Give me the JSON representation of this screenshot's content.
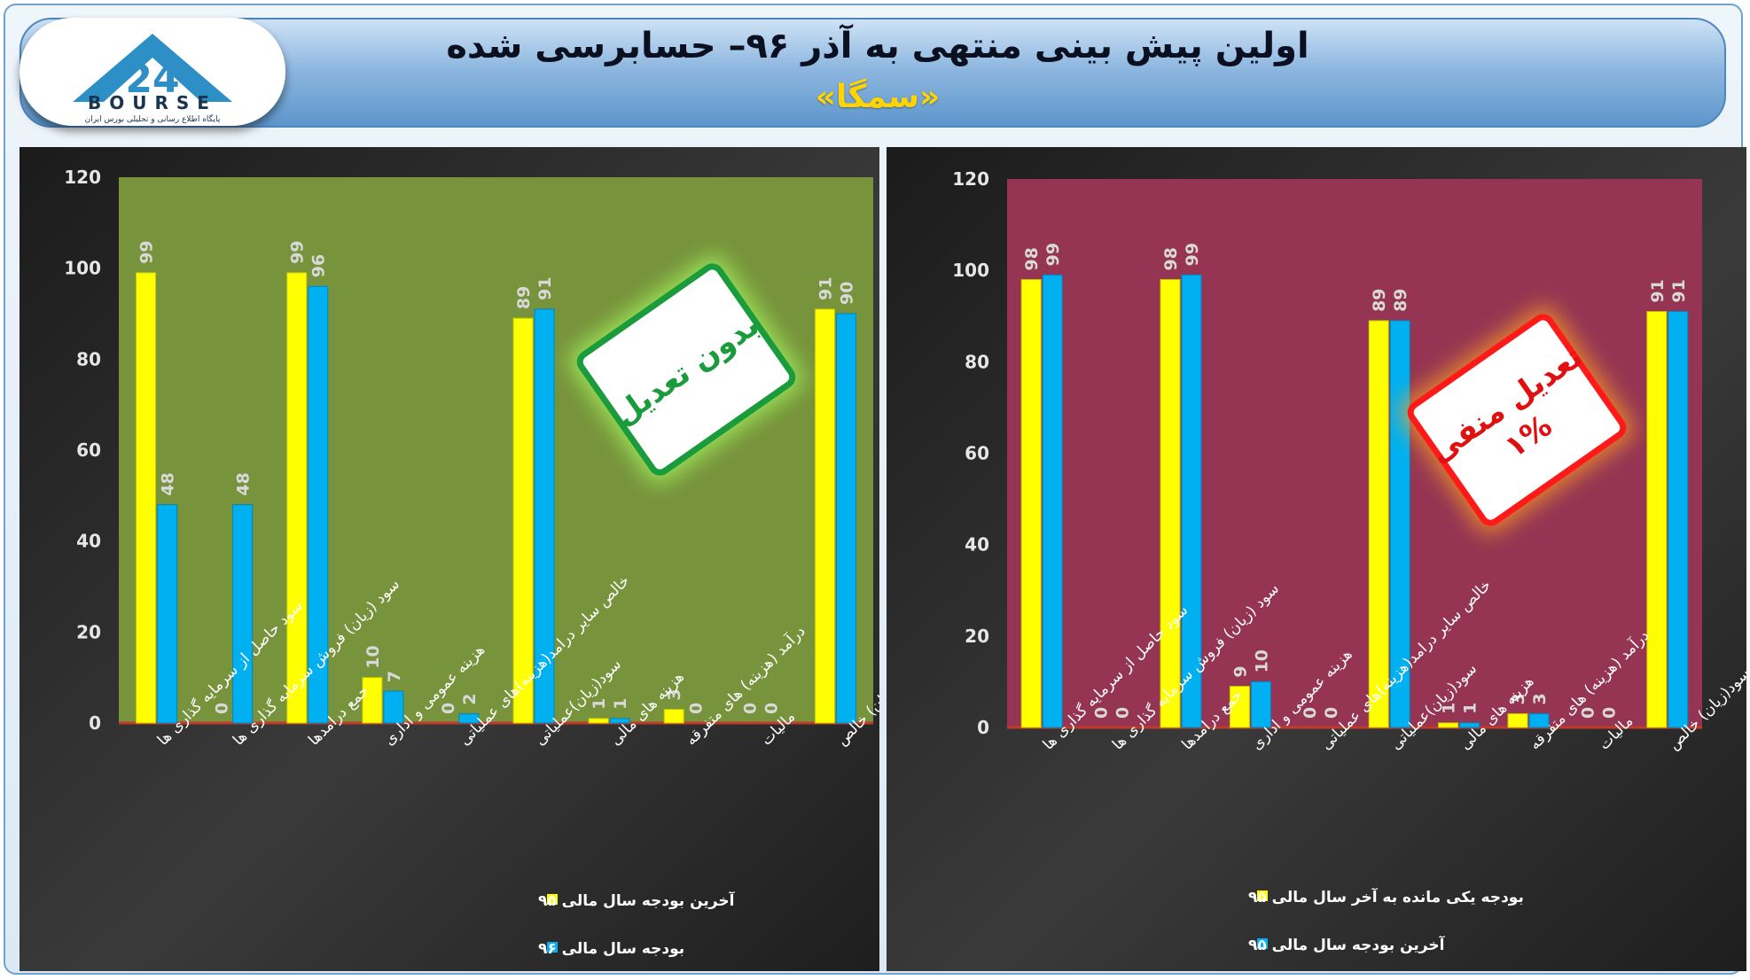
{
  "header": {
    "title": "اولین پیش بینی منتهی به آذر ۹۶– حسابرسی شده",
    "subtitle": "«سمگا»"
  },
  "logo": {
    "brand": "BOURSE",
    "number": "24",
    "tagline": "پایگاه اطلاع رسانی و تحلیلی بورس ایران"
  },
  "colors": {
    "yellow": "#ffff00",
    "blue": "#00b0f0",
    "left_plot_bg": "#77933c",
    "right_plot_bg": "#953553",
    "chart_bg": "#262626"
  },
  "chart_data": [
    {
      "type": "bar",
      "categories": [
        "سود حاصل از سرمایه گذاری ها",
        "سود (زیان) فروش سرمایه گذاری ها",
        "جمع درامدها",
        "هزینه عمومی و اداری",
        "خالص سایر درامد(هزینه)های عملیاتی",
        "سود(زیان)عملیاتی",
        "هزینه های مالی",
        "درآمد (هزینه) های متفرقه",
        "مالیات",
        "سود(زیان) خالص"
      ],
      "series": [
        {
          "name": "آخرین بودجه سال مالی ۹۵",
          "values": [
            99,
            0,
            99,
            10,
            0,
            89,
            1,
            3,
            0,
            91
          ]
        },
        {
          "name": "بودجه سال مالی ۹۶",
          "values": [
            48,
            48,
            96,
            7,
            2,
            91,
            1,
            0,
            0,
            90
          ]
        }
      ],
      "ylim": [
        0,
        120
      ],
      "yticks": [
        0,
        20,
        40,
        60,
        80,
        100,
        120
      ],
      "badge": [
        "بدون تعدیل"
      ],
      "legend_position": "bottom"
    },
    {
      "type": "bar",
      "categories": [
        "سود حاصل از سرمایه گذاری ها",
        "سود (زیان) فروش سرمایه گذاری ها",
        "جمع درامدها",
        "هزینه عمومی و اداری",
        "خالص سایر درامد(هزینه)های عملیاتی",
        "سود(زیان)عملیاتی",
        "هزینه های مالی",
        "درآمد (هزینه) های متفرقه",
        "مالیات",
        "سود(زیان) خالص"
      ],
      "series": [
        {
          "name": "بودجه یکی مانده به آخر سال مالی ۹۵",
          "values": [
            98,
            0,
            98,
            9,
            0,
            89,
            1,
            3,
            0,
            91
          ]
        },
        {
          "name": "آخرین بودجه سال مالی ۹۵",
          "values": [
            99,
            0,
            99,
            10,
            0,
            89,
            1,
            3,
            0,
            91
          ]
        }
      ],
      "ylim": [
        0,
        120
      ],
      "yticks": [
        0,
        20,
        40,
        60,
        80,
        100,
        120
      ],
      "badge": [
        "تعدیل منفی",
        "۱%"
      ],
      "legend_position": "bottom"
    }
  ]
}
